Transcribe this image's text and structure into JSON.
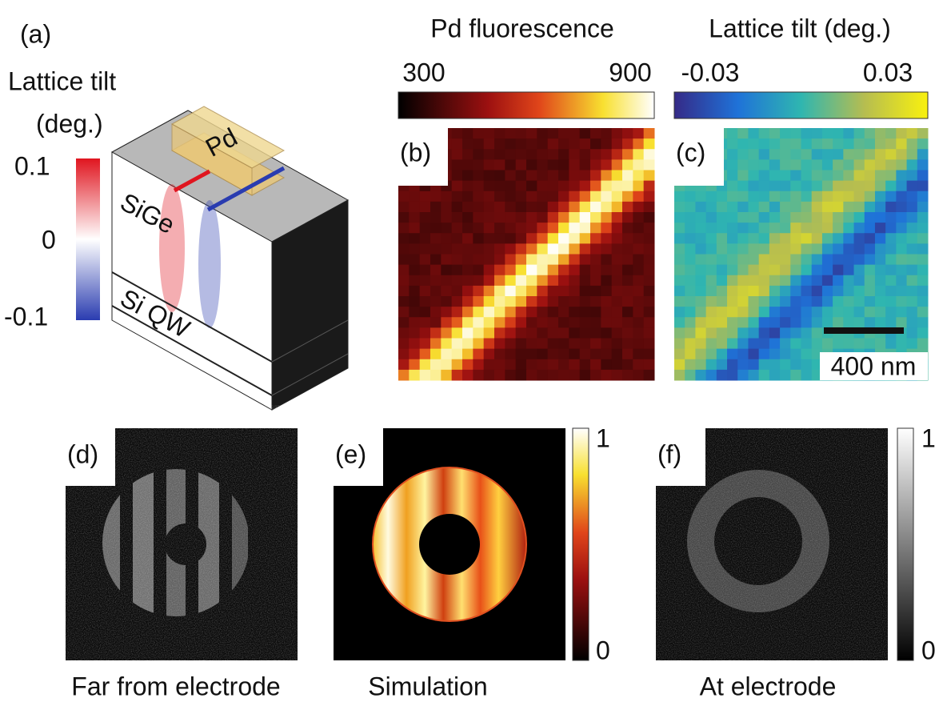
{
  "panel_a": {
    "label": "(a)",
    "colorbar_title_1": "Lattice tilt",
    "colorbar_title_2": "(deg.)",
    "colorbar_ticks": [
      "0.1",
      "0",
      "-0.1"
    ],
    "layer_labels": [
      "Pd",
      "SiGe",
      "Si QW"
    ]
  },
  "panel_b": {
    "label": "(b)",
    "colorbar_title": "Pd fluorescence",
    "colorbar_ticks": [
      "300",
      "900"
    ]
  },
  "panel_c": {
    "label": "(c)",
    "colorbar_title": "Lattice tilt (deg.)",
    "colorbar_ticks": [
      "-0.03",
      "0.03"
    ],
    "scale_bar": "400 nm"
  },
  "panel_d": {
    "label": "(d)",
    "caption": "Far from electrode"
  },
  "panel_e": {
    "label": "(e)",
    "caption": "Simulation",
    "colorbar_ticks": [
      "1",
      "0"
    ]
  },
  "panel_f": {
    "label": "(f)",
    "caption": "At electrode",
    "colorbar_ticks": [
      "1",
      "0"
    ]
  }
}
